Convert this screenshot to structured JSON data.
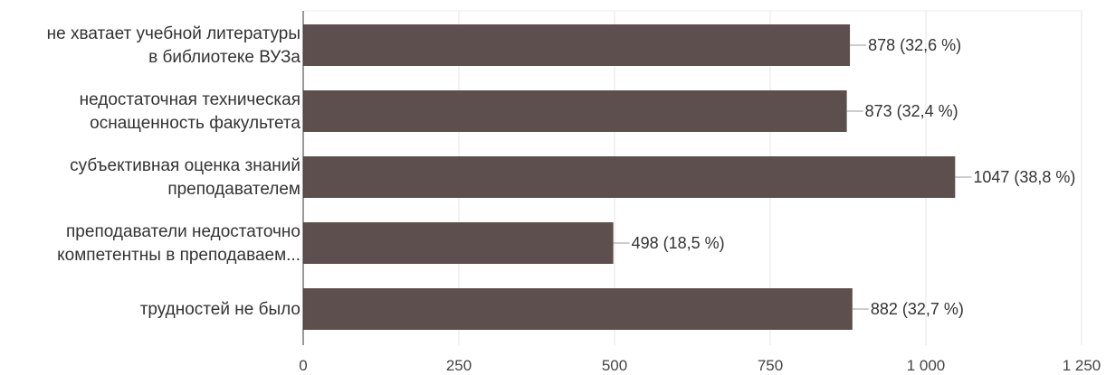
{
  "chart_data": {
    "type": "bar",
    "orientation": "horizontal",
    "categories": [
      [
        "не хватает учебной литературы",
        "в библиотеке ВУЗа"
      ],
      [
        "недостаточная техническая",
        "оснащенность факультета"
      ],
      [
        "субъективная оценка знаний",
        "преподавателем"
      ],
      [
        "преподаватели недостаточно",
        "компетентны в преподаваем..."
      ],
      [
        "трудностей не было"
      ]
    ],
    "values": [
      878,
      873,
      1047,
      498,
      882
    ],
    "data_labels": [
      "878 (32,6 %)",
      "873 (32,4 %)",
      "1047 (38,8 %)",
      "498 (18,5 %)",
      "882 (32,7 %)"
    ],
    "xlim": [
      0,
      1250
    ],
    "xticks": [
      0,
      250,
      500,
      750,
      1000,
      1250
    ],
    "xtick_labels": [
      "0",
      "250",
      "500",
      "750",
      "1 000",
      "1 250"
    ],
    "grid": true,
    "bar_color": "#5c4f4d"
  }
}
